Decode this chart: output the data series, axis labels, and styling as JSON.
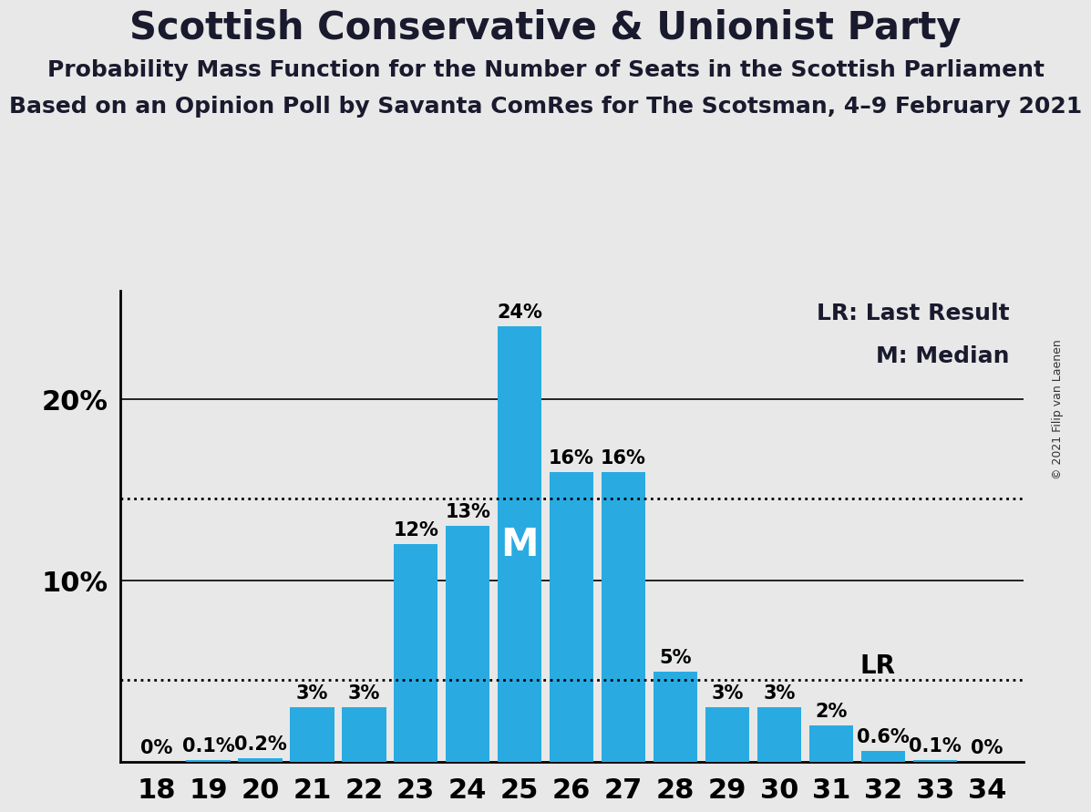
{
  "title": "Scottish Conservative & Unionist Party",
  "subtitle1": "Probability Mass Function for the Number of Seats in the Scottish Parliament",
  "subtitle2": "Based on an Opinion Poll by Savanta ComRes for The Scotsman, 4–9 February 2021",
  "copyright": "© 2021 Filip van Laenen",
  "seats": [
    18,
    19,
    20,
    21,
    22,
    23,
    24,
    25,
    26,
    27,
    28,
    29,
    30,
    31,
    32,
    33,
    34
  ],
  "probabilities": [
    0.0,
    0.1,
    0.2,
    3.0,
    3.0,
    12.0,
    13.0,
    24.0,
    16.0,
    16.0,
    5.0,
    3.0,
    3.0,
    2.0,
    0.6,
    0.1,
    0.0
  ],
  "bar_color": "#29ABE2",
  "background_color": "#E8E8E8",
  "median_seat": 25,
  "last_result_seat": 31,
  "last_result_value": 4.5,
  "dotted_line_upper": 14.5,
  "dotted_line_lower": 4.5,
  "legend_lr": "LR: Last Result",
  "legend_m": "M: Median",
  "ylim_max": 26,
  "yticks": [
    10,
    20
  ],
  "title_fontsize": 30,
  "subtitle_fontsize": 18,
  "bar_label_fontsize": 15,
  "axis_tick_fontsize": 22,
  "legend_fontsize": 18,
  "lr_label_fontsize": 20
}
